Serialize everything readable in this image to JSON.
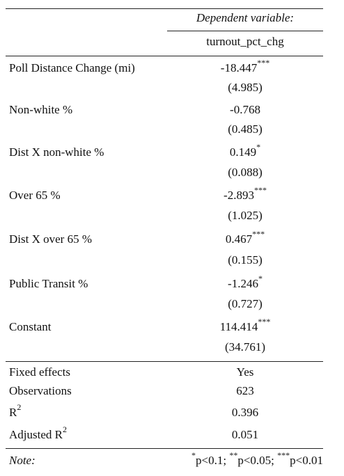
{
  "header": {
    "dependent_variable_label": "Dependent variable:",
    "dependent_variable_name": "turnout_pct_chg"
  },
  "rows": [
    {
      "label": "Poll Distance Change (mi)",
      "coef": "-18.447",
      "stars": "***",
      "se": "(4.985)"
    },
    {
      "label": "Non-white %",
      "coef": "-0.768",
      "stars": "",
      "se": "(0.485)"
    },
    {
      "label": "Dist X non-white %",
      "coef": "0.149",
      "stars": "*",
      "se": "(0.088)"
    },
    {
      "label": "Over 65 %",
      "coef": "-2.893",
      "stars": "***",
      "se": "(1.025)"
    },
    {
      "label": "Dist X over 65 %",
      "coef": "0.467",
      "stars": "***",
      "se": "(0.155)"
    },
    {
      "label": "Public Transit %",
      "coef": "-1.246",
      "stars": "*",
      "se": "(0.727)"
    },
    {
      "label": "Constant",
      "coef": "114.414",
      "stars": "***",
      "se": "(34.761)"
    }
  ],
  "stats": {
    "fixed_effects": {
      "label": "Fixed effects",
      "value": "Yes"
    },
    "observations": {
      "label": "Observations",
      "value": "623"
    },
    "r2": {
      "label": "R",
      "label_sup": "2",
      "value": "0.396"
    },
    "adj_r2": {
      "label": "Adjusted R",
      "label_sup": "2",
      "value": "0.051"
    }
  },
  "note": {
    "label": "Note:",
    "sig1_star": "*",
    "sig1_text": "p<0.1; ",
    "sig2_star": "**",
    "sig2_text": "p<0.05; ",
    "sig3_star": "***",
    "sig3_text": "p<0.01"
  }
}
